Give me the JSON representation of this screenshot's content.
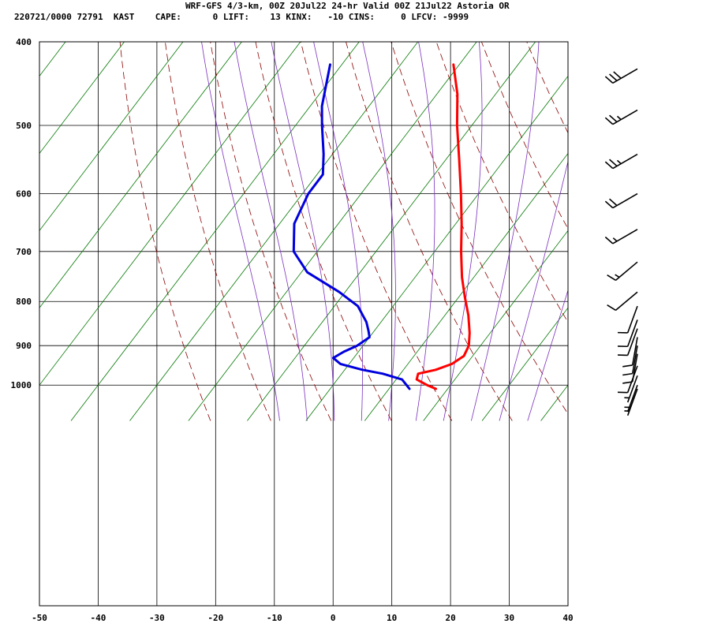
{
  "header": {
    "line1": "WRF-GFS 4/3-km, 00Z 20Jul22 24-hr Valid 00Z 21Jul22 Astoria OR",
    "line2": "220721/0000 72791  KAST    CAPE:      0 LIFT:    13 KINX:   -10 CINS:     0 LFCV: -9999"
  },
  "chart_data": {
    "type": "line",
    "subtype": "skew-t log-p sounding",
    "xlim": [
      -50,
      40
    ],
    "ylim": [
      1040,
      400
    ],
    "x_ticks": [
      -50,
      -40,
      -30,
      -20,
      -10,
      0,
      10,
      20,
      30,
      40
    ],
    "x_tick_labels": [
      "-50",
      "-40",
      "-30",
      "-20",
      "-10",
      "0",
      "10",
      "20",
      "30",
      "40"
    ],
    "y_ticks": [
      400,
      500,
      600,
      700,
      800,
      900,
      1000
    ],
    "y_tick_labels": [
      "400",
      "500",
      "600",
      "700",
      "800",
      "900",
      "1000"
    ],
    "grid": true,
    "background_lines": {
      "dry_adiabats_theta_K": [
        250,
        260,
        270,
        280,
        290,
        300,
        310,
        320,
        330,
        340,
        350,
        360,
        370,
        380,
        390
      ],
      "moist_adiabats_thetaw_C": [
        -10,
        -5,
        0,
        5,
        10,
        15,
        20,
        25,
        30,
        35
      ],
      "isotherms_skewed_C": [
        -90,
        -80,
        -70,
        -60,
        -50,
        -40,
        -30,
        -20,
        -10,
        0,
        10,
        20,
        30,
        40
      ],
      "colors": {
        "dry_adiabat": "#8b0000",
        "moist_adiabat": "#7b2fbe",
        "isotherm": "#007700"
      }
    },
    "series": [
      {
        "color": "#ff0000",
        "points": [
          [
            1010,
            18.0
          ],
          [
            1000,
            16.0
          ],
          [
            985,
            13.5
          ],
          [
            970,
            13.0
          ],
          [
            960,
            15.5
          ],
          [
            945,
            17.5
          ],
          [
            925,
            18.5
          ],
          [
            900,
            18.0
          ],
          [
            870,
            16.5
          ],
          [
            830,
            14.0
          ],
          [
            790,
            11.0
          ],
          [
            750,
            8.0
          ],
          [
            700,
            4.5
          ],
          [
            650,
            1.0
          ],
          [
            600,
            -3.0
          ],
          [
            550,
            -7.5
          ],
          [
            500,
            -12.5
          ],
          [
            460,
            -16.5
          ],
          [
            425,
            -21.0
          ]
        ]
      },
      {
        "color": "#0000dd",
        "points": [
          [
            1010,
            13.5
          ],
          [
            1000,
            12.5
          ],
          [
            985,
            11.0
          ],
          [
            970,
            7.0
          ],
          [
            960,
            3.0
          ],
          [
            945,
            -1.5
          ],
          [
            930,
            -3.5
          ],
          [
            915,
            -2.5
          ],
          [
            900,
            -1.0
          ],
          [
            880,
            0.0
          ],
          [
            865,
            -1.0
          ],
          [
            845,
            -2.5
          ],
          [
            810,
            -6.0
          ],
          [
            780,
            -11.0
          ],
          [
            740,
            -19.0
          ],
          [
            700,
            -24.0
          ],
          [
            650,
            -27.5
          ],
          [
            600,
            -29.0
          ],
          [
            570,
            -29.0
          ],
          [
            540,
            -31.5
          ],
          [
            500,
            -35.5
          ],
          [
            475,
            -38.0
          ],
          [
            425,
            -42.0
          ]
        ]
      }
    ],
    "wind_barbs": [
      {
        "p": 430,
        "dir": 240,
        "speed": 30
      },
      {
        "p": 480,
        "dir": 240,
        "speed": 25
      },
      {
        "p": 540,
        "dir": 240,
        "speed": 25
      },
      {
        "p": 600,
        "dir": 240,
        "speed": 20
      },
      {
        "p": 660,
        "dir": 240,
        "speed": 15
      },
      {
        "p": 720,
        "dir": 230,
        "speed": 15
      },
      {
        "p": 780,
        "dir": 230,
        "speed": 10
      },
      {
        "p": 810,
        "dir": 200,
        "speed": 10
      },
      {
        "p": 840,
        "dir": 200,
        "speed": 10
      },
      {
        "p": 860,
        "dir": 200,
        "speed": 10
      },
      {
        "p": 880,
        "dir": 190,
        "speed": 10
      },
      {
        "p": 900,
        "dir": 190,
        "speed": 10
      },
      {
        "p": 920,
        "dir": 190,
        "speed": 10
      },
      {
        "p": 950,
        "dir": 200,
        "speed": 10
      },
      {
        "p": 975,
        "dir": 200,
        "speed": 5
      },
      {
        "p": 1000,
        "dir": 200,
        "speed": 5
      },
      {
        "p": 1010,
        "dir": 200,
        "speed": 5
      }
    ]
  }
}
